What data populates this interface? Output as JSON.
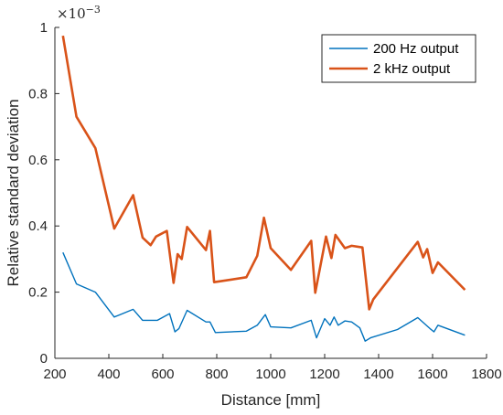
{
  "chart_data": {
    "type": "line",
    "xlabel": "Distance [mm]",
    "ylabel": "Relative standard deviation",
    "y_exponent_label": "×10",
    "y_exponent_power": "−3",
    "xlim": [
      200,
      1800
    ],
    "ylim": [
      0,
      1
    ],
    "xticks": [
      200,
      400,
      600,
      800,
      1000,
      1200,
      1400,
      1600,
      1800
    ],
    "yticks": [
      0,
      0.2,
      0.4,
      0.6,
      0.8,
      1
    ],
    "ytick_labels": [
      "0",
      "0.2",
      "0.4",
      "0.6",
      "0.8",
      "1"
    ],
    "grid": false,
    "legend_position": "top-right",
    "series": [
      {
        "name": "200 Hz output",
        "color": "#0072BD",
        "x": [
          230,
          280,
          350,
          420,
          490,
          525,
          580,
          625,
          645,
          660,
          690,
          760,
          775,
          795,
          910,
          950,
          980,
          1000,
          1075,
          1150,
          1170,
          1200,
          1220,
          1235,
          1250,
          1275,
          1300,
          1330,
          1350,
          1370,
          1470,
          1545,
          1590,
          1605,
          1620,
          1720
        ],
        "y": [
          0.32,
          0.225,
          0.2,
          0.125,
          0.148,
          0.115,
          0.115,
          0.135,
          0.08,
          0.09,
          0.145,
          0.11,
          0.11,
          0.078,
          0.082,
          0.1,
          0.132,
          0.095,
          0.092,
          0.115,
          0.062,
          0.12,
          0.1,
          0.125,
          0.1,
          0.113,
          0.11,
          0.092,
          0.052,
          0.062,
          0.087,
          0.123,
          0.09,
          0.08,
          0.1,
          0.07
        ]
      },
      {
        "name": "2 kHz output",
        "color": "#D95319",
        "x": [
          230,
          280,
          350,
          420,
          490,
          525,
          555,
          575,
          615,
          640,
          655,
          670,
          690,
          760,
          775,
          790,
          910,
          950,
          975,
          1000,
          1075,
          1150,
          1165,
          1205,
          1225,
          1240,
          1275,
          1300,
          1340,
          1365,
          1380,
          1545,
          1565,
          1580,
          1600,
          1620,
          1720
        ],
        "y": [
          0.975,
          0.73,
          0.635,
          0.392,
          0.493,
          0.365,
          0.342,
          0.368,
          0.385,
          0.228,
          0.315,
          0.3,
          0.397,
          0.327,
          0.385,
          0.23,
          0.245,
          0.31,
          0.425,
          0.333,
          0.267,
          0.355,
          0.198,
          0.368,
          0.303,
          0.373,
          0.333,
          0.34,
          0.335,
          0.148,
          0.178,
          0.352,
          0.305,
          0.33,
          0.258,
          0.29,
          0.207
        ]
      }
    ]
  }
}
